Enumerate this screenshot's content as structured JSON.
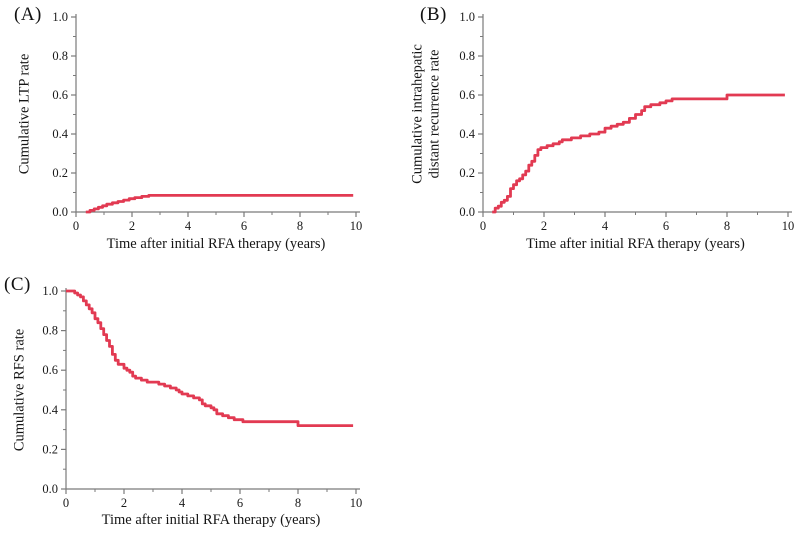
{
  "figure": {
    "background": "#ffffff",
    "accent_color": "#e23a52",
    "axis_color": "#7a7a7a",
    "text_color": "#1a1a1a"
  },
  "chart_data": [
    {
      "type": "line",
      "panel": "(A)",
      "xlabel": "Time after initial RFA therapy (years)",
      "ylabel": "Cumulative LTP rate",
      "ylabel_lines": [
        "Cumulative LTP rate"
      ],
      "xlim": [
        0,
        10
      ],
      "ylim": [
        0,
        1
      ],
      "x_major_ticks": [
        0,
        2,
        4,
        6,
        8,
        10
      ],
      "x_major_labels": [
        "0",
        "2",
        "4",
        "6",
        "8",
        "10"
      ],
      "x_minor_ticks": [
        1,
        3,
        5,
        7,
        9
      ],
      "y_major_ticks": [
        0,
        0.2,
        0.4,
        0.6,
        0.8,
        1.0
      ],
      "y_major_labels": [
        "0.0",
        "0.2",
        "0.4",
        "0.6",
        "0.8",
        "1.0"
      ],
      "y_minor_ticks": [
        0.1,
        0.3,
        0.5,
        0.7,
        0.9
      ],
      "curve_style": "step-after",
      "grid": false,
      "legend": null,
      "x_end": 9.9,
      "points": [
        [
          0.35,
          0.0
        ],
        [
          0.5,
          0.008
        ],
        [
          0.65,
          0.016
        ],
        [
          0.8,
          0.024
        ],
        [
          0.95,
          0.032
        ],
        [
          1.1,
          0.04
        ],
        [
          1.3,
          0.047
        ],
        [
          1.5,
          0.054
        ],
        [
          1.7,
          0.061
        ],
        [
          1.9,
          0.068
        ],
        [
          2.1,
          0.074
        ],
        [
          2.35,
          0.08
        ],
        [
          2.6,
          0.085
        ]
      ]
    },
    {
      "type": "line",
      "panel": "(B)",
      "xlabel": "Time after initial RFA therapy (years)",
      "ylabel": "Cumulative intrahepatic distant recurrence rate",
      "ylabel_lines": [
        "Cumulative intrahepatic",
        "distant recurrence rate"
      ],
      "xlim": [
        0,
        10
      ],
      "ylim": [
        0,
        1
      ],
      "x_major_ticks": [
        0,
        2,
        4,
        6,
        8,
        10
      ],
      "x_major_labels": [
        "0",
        "2",
        "4",
        "6",
        "8",
        "10"
      ],
      "x_minor_ticks": [
        1,
        3,
        5,
        7,
        9
      ],
      "y_major_ticks": [
        0,
        0.2,
        0.4,
        0.6,
        0.8,
        1.0
      ],
      "y_major_labels": [
        "0.0",
        "0.2",
        "0.4",
        "0.6",
        "0.8",
        "1.0"
      ],
      "y_minor_ticks": [
        0.1,
        0.3,
        0.5,
        0.7,
        0.9
      ],
      "curve_style": "step-after",
      "grid": false,
      "legend": null,
      "x_end": 9.9,
      "points": [
        [
          0.3,
          0.0
        ],
        [
          0.4,
          0.02
        ],
        [
          0.5,
          0.03
        ],
        [
          0.6,
          0.05
        ],
        [
          0.7,
          0.06
        ],
        [
          0.8,
          0.08
        ],
        [
          0.9,
          0.12
        ],
        [
          1.0,
          0.14
        ],
        [
          1.1,
          0.16
        ],
        [
          1.2,
          0.17
        ],
        [
          1.3,
          0.19
        ],
        [
          1.4,
          0.21
        ],
        [
          1.5,
          0.24
        ],
        [
          1.6,
          0.26
        ],
        [
          1.7,
          0.29
        ],
        [
          1.8,
          0.32
        ],
        [
          1.9,
          0.33
        ],
        [
          2.1,
          0.34
        ],
        [
          2.3,
          0.35
        ],
        [
          2.5,
          0.36
        ],
        [
          2.6,
          0.37
        ],
        [
          2.9,
          0.38
        ],
        [
          3.2,
          0.39
        ],
        [
          3.5,
          0.4
        ],
        [
          3.8,
          0.41
        ],
        [
          4.0,
          0.43
        ],
        [
          4.2,
          0.44
        ],
        [
          4.4,
          0.45
        ],
        [
          4.6,
          0.46
        ],
        [
          4.8,
          0.48
        ],
        [
          5.0,
          0.5
        ],
        [
          5.2,
          0.52
        ],
        [
          5.3,
          0.54
        ],
        [
          5.5,
          0.55
        ],
        [
          5.8,
          0.56
        ],
        [
          6.0,
          0.57
        ],
        [
          6.2,
          0.58
        ],
        [
          8.0,
          0.6
        ]
      ]
    },
    {
      "type": "line",
      "panel": "(C)",
      "xlabel": "Time after initial RFA therapy (years)",
      "ylabel": "Cumulative RFS rate",
      "ylabel_lines": [
        "Cumulative RFS rate"
      ],
      "xlim": [
        0,
        10
      ],
      "ylim": [
        0,
        1
      ],
      "x_major_ticks": [
        0,
        2,
        4,
        6,
        8,
        10
      ],
      "x_major_labels": [
        "0",
        "2",
        "4",
        "6",
        "8",
        "10"
      ],
      "x_minor_ticks": [
        1,
        3,
        5,
        7,
        9
      ],
      "y_major_ticks": [
        0,
        0.2,
        0.4,
        0.6,
        0.8,
        1.0
      ],
      "y_major_labels": [
        "0.0",
        "0.2",
        "0.4",
        "0.6",
        "0.8",
        "1.0"
      ],
      "y_minor_ticks": [
        0.1,
        0.3,
        0.5,
        0.7,
        0.9
      ],
      "curve_style": "step-after",
      "grid": false,
      "legend": null,
      "x_end": 9.9,
      "points": [
        [
          0.0,
          1.0
        ],
        [
          0.3,
          0.99
        ],
        [
          0.4,
          0.98
        ],
        [
          0.5,
          0.97
        ],
        [
          0.6,
          0.95
        ],
        [
          0.7,
          0.93
        ],
        [
          0.8,
          0.91
        ],
        [
          0.9,
          0.89
        ],
        [
          1.0,
          0.86
        ],
        [
          1.1,
          0.84
        ],
        [
          1.2,
          0.81
        ],
        [
          1.3,
          0.78
        ],
        [
          1.4,
          0.75
        ],
        [
          1.5,
          0.72
        ],
        [
          1.6,
          0.68
        ],
        [
          1.7,
          0.65
        ],
        [
          1.8,
          0.63
        ],
        [
          2.0,
          0.61
        ],
        [
          2.1,
          0.6
        ],
        [
          2.2,
          0.59
        ],
        [
          2.3,
          0.57
        ],
        [
          2.4,
          0.56
        ],
        [
          2.6,
          0.55
        ],
        [
          2.8,
          0.54
        ],
        [
          3.2,
          0.53
        ],
        [
          3.4,
          0.52
        ],
        [
          3.6,
          0.51
        ],
        [
          3.8,
          0.5
        ],
        [
          3.9,
          0.49
        ],
        [
          4.0,
          0.48
        ],
        [
          4.2,
          0.47
        ],
        [
          4.4,
          0.46
        ],
        [
          4.6,
          0.45
        ],
        [
          4.7,
          0.43
        ],
        [
          4.8,
          0.42
        ],
        [
          5.0,
          0.41
        ],
        [
          5.1,
          0.4
        ],
        [
          5.2,
          0.38
        ],
        [
          5.4,
          0.37
        ],
        [
          5.6,
          0.36
        ],
        [
          5.8,
          0.35
        ],
        [
          6.1,
          0.34
        ],
        [
          8.0,
          0.32
        ]
      ]
    }
  ]
}
